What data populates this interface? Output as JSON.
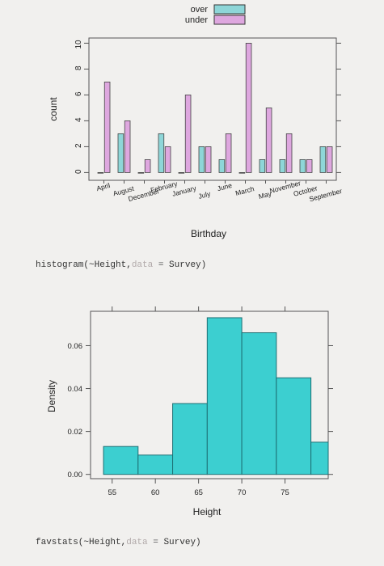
{
  "code": {
    "line1": {
      "fn": "histogram(~Height,",
      "arg": "data",
      "eq": " = ",
      "val": "Survey)"
    },
    "line2": {
      "fn": "favstats(~Height,",
      "arg": "data",
      "eq": " = ",
      "val": "Survey)"
    }
  },
  "chart_data": [
    {
      "type": "bar",
      "title": "",
      "xlabel": "Birthday",
      "ylabel": "count",
      "ylim": [
        -0.6,
        10.4
      ],
      "yticks": [
        0,
        2,
        4,
        6,
        8,
        10
      ],
      "legend": {
        "placement": "top-center"
      },
      "colors": {
        "over": "#8ed6d8",
        "under": "#dea7df",
        "axis": "#555555"
      },
      "categories": [
        "April",
        "August",
        "December",
        "February",
        "January",
        "July",
        "June",
        "March",
        "May",
        "November",
        "October",
        "September"
      ],
      "series": [
        {
          "name": "over",
          "values": [
            0,
            3,
            0,
            3,
            0,
            2,
            1,
            0,
            1,
            1,
            1,
            2
          ]
        },
        {
          "name": "under",
          "values": [
            7,
            4,
            1,
            2,
            6,
            2,
            3,
            10,
            5,
            3,
            1,
            2
          ]
        }
      ]
    },
    {
      "type": "bar",
      "subtype": "histogram",
      "title": "",
      "xlabel": "Height",
      "ylabel": "Density",
      "xlim": [
        52.5,
        80
      ],
      "ylim": [
        -0.002,
        0.076
      ],
      "xticks": [
        55,
        60,
        65,
        70,
        75
      ],
      "yticks": [
        0.0,
        0.02,
        0.04,
        0.06
      ],
      "ytick_labels": [
        "0.00",
        "0.02",
        "0.04",
        "0.06"
      ],
      "colors": {
        "fill": "#3ccfd0",
        "edge": "#1d6f74"
      },
      "bins": [
        {
          "x0": 54,
          "x1": 58,
          "density": 0.013
        },
        {
          "x0": 58,
          "x1": 62,
          "density": 0.009
        },
        {
          "x0": 62,
          "x1": 66,
          "density": 0.033
        },
        {
          "x0": 66,
          "x1": 70,
          "density": 0.073
        },
        {
          "x0": 70,
          "x1": 74,
          "density": 0.066
        },
        {
          "x0": 74,
          "x1": 78,
          "density": 0.045
        },
        {
          "x0": 78,
          "x1": 82,
          "density": 0.015
        }
      ]
    }
  ]
}
